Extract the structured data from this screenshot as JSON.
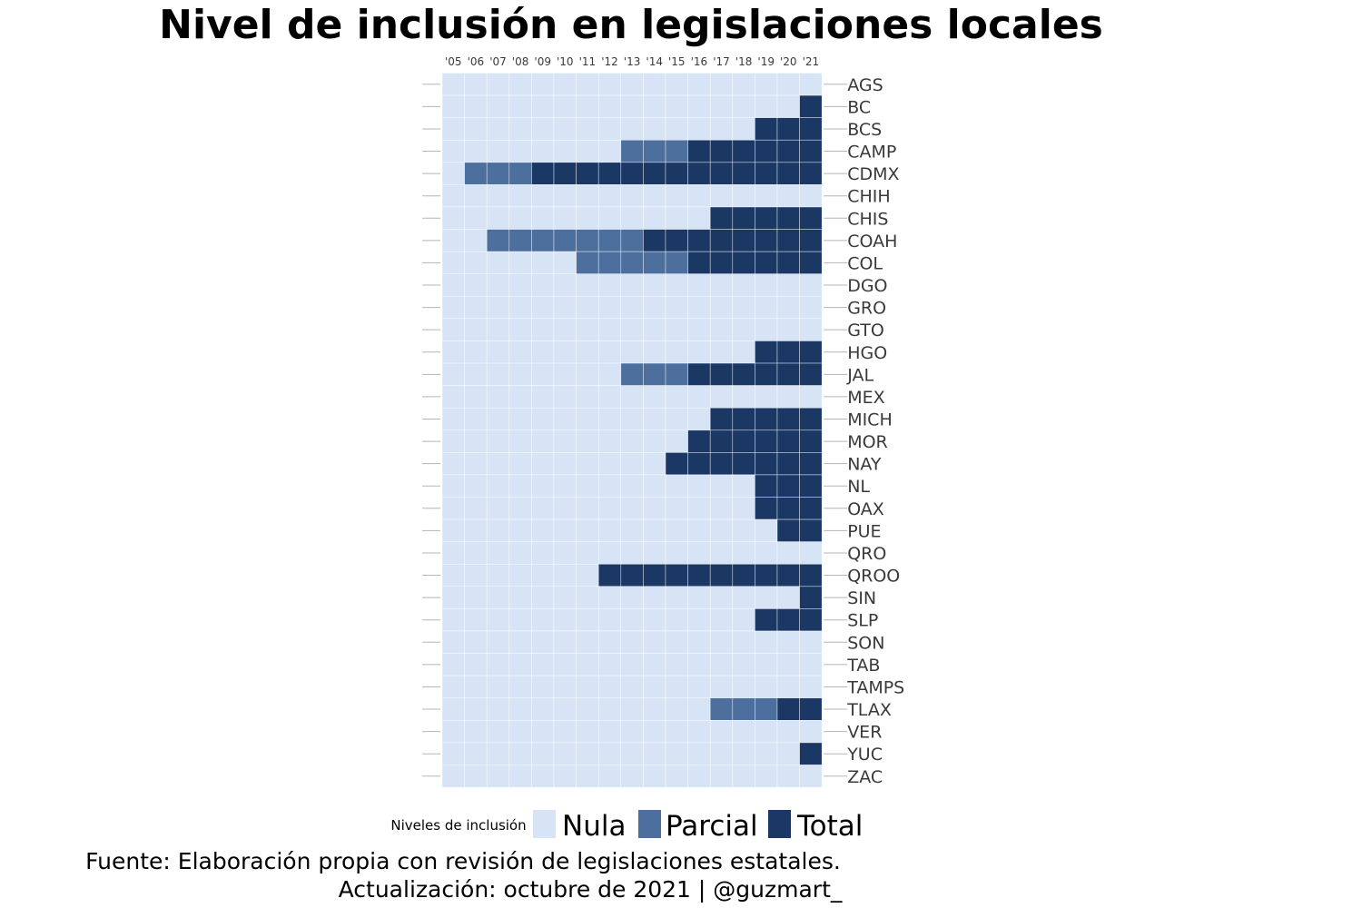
{
  "chart_data": {
    "type": "heatmap",
    "title": "Nivel de inclusión en legislaciones locales",
    "x_categories": [
      "'05",
      "'06",
      "'07",
      "'08",
      "'09",
      "'10",
      "'11",
      "'12",
      "'13",
      "'14",
      "'15",
      "'16",
      "'17",
      "'18",
      "'19",
      "'20",
      "'21"
    ],
    "y_categories": [
      "AGS",
      "BC",
      "BCS",
      "CAMP",
      "CDMX",
      "CHIH",
      "CHIS",
      "COAH",
      "COL",
      "DGO",
      "GRO",
      "GTO",
      "HGO",
      "JAL",
      "MEX",
      "MICH",
      "MOR",
      "NAY",
      "NL",
      "OAX",
      "PUE",
      "QRO",
      "QROO",
      "SIN",
      "SLP",
      "SON",
      "TAB",
      "TAMPS",
      "TLAX",
      "VER",
      "YUC",
      "ZAC"
    ],
    "levels": [
      "Nula",
      "Parcial",
      "Total"
    ],
    "level_colors": [
      "#d6e4f5",
      "#4c6f9e",
      "#1b3864"
    ],
    "values": [
      [
        0,
        0,
        0,
        0,
        0,
        0,
        0,
        0,
        0,
        0,
        0,
        0,
        0,
        0,
        0,
        0,
        0
      ],
      [
        0,
        0,
        0,
        0,
        0,
        0,
        0,
        0,
        0,
        0,
        0,
        0,
        0,
        0,
        0,
        0,
        2
      ],
      [
        0,
        0,
        0,
        0,
        0,
        0,
        0,
        0,
        0,
        0,
        0,
        0,
        0,
        0,
        2,
        2,
        2
      ],
      [
        0,
        0,
        0,
        0,
        0,
        0,
        0,
        0,
        1,
        1,
        1,
        2,
        2,
        2,
        2,
        2,
        2
      ],
      [
        0,
        1,
        1,
        1,
        2,
        2,
        2,
        2,
        2,
        2,
        2,
        2,
        2,
        2,
        2,
        2,
        2
      ],
      [
        0,
        0,
        0,
        0,
        0,
        0,
        0,
        0,
        0,
        0,
        0,
        0,
        0,
        0,
        0,
        0,
        0
      ],
      [
        0,
        0,
        0,
        0,
        0,
        0,
        0,
        0,
        0,
        0,
        0,
        0,
        2,
        2,
        2,
        2,
        2
      ],
      [
        0,
        0,
        1,
        1,
        1,
        1,
        1,
        1,
        1,
        2,
        2,
        2,
        2,
        2,
        2,
        2,
        2
      ],
      [
        0,
        0,
        0,
        0,
        0,
        0,
        1,
        1,
        1,
        1,
        1,
        2,
        2,
        2,
        2,
        2,
        2
      ],
      [
        0,
        0,
        0,
        0,
        0,
        0,
        0,
        0,
        0,
        0,
        0,
        0,
        0,
        0,
        0,
        0,
        0
      ],
      [
        0,
        0,
        0,
        0,
        0,
        0,
        0,
        0,
        0,
        0,
        0,
        0,
        0,
        0,
        0,
        0,
        0
      ],
      [
        0,
        0,
        0,
        0,
        0,
        0,
        0,
        0,
        0,
        0,
        0,
        0,
        0,
        0,
        0,
        0,
        0
      ],
      [
        0,
        0,
        0,
        0,
        0,
        0,
        0,
        0,
        0,
        0,
        0,
        0,
        0,
        0,
        2,
        2,
        2
      ],
      [
        0,
        0,
        0,
        0,
        0,
        0,
        0,
        0,
        1,
        1,
        1,
        2,
        2,
        2,
        2,
        2,
        2
      ],
      [
        0,
        0,
        0,
        0,
        0,
        0,
        0,
        0,
        0,
        0,
        0,
        0,
        0,
        0,
        0,
        0,
        0
      ],
      [
        0,
        0,
        0,
        0,
        0,
        0,
        0,
        0,
        0,
        0,
        0,
        0,
        2,
        2,
        2,
        2,
        2
      ],
      [
        0,
        0,
        0,
        0,
        0,
        0,
        0,
        0,
        0,
        0,
        0,
        2,
        2,
        2,
        2,
        2,
        2
      ],
      [
        0,
        0,
        0,
        0,
        0,
        0,
        0,
        0,
        0,
        0,
        2,
        2,
        2,
        2,
        2,
        2,
        2
      ],
      [
        0,
        0,
        0,
        0,
        0,
        0,
        0,
        0,
        0,
        0,
        0,
        0,
        0,
        0,
        2,
        2,
        2
      ],
      [
        0,
        0,
        0,
        0,
        0,
        0,
        0,
        0,
        0,
        0,
        0,
        0,
        0,
        0,
        2,
        2,
        2
      ],
      [
        0,
        0,
        0,
        0,
        0,
        0,
        0,
        0,
        0,
        0,
        0,
        0,
        0,
        0,
        0,
        2,
        2
      ],
      [
        0,
        0,
        0,
        0,
        0,
        0,
        0,
        0,
        0,
        0,
        0,
        0,
        0,
        0,
        0,
        0,
        0
      ],
      [
        0,
        0,
        0,
        0,
        0,
        0,
        0,
        2,
        2,
        2,
        2,
        2,
        2,
        2,
        2,
        2,
        2
      ],
      [
        0,
        0,
        0,
        0,
        0,
        0,
        0,
        0,
        0,
        0,
        0,
        0,
        0,
        0,
        0,
        0,
        2
      ],
      [
        0,
        0,
        0,
        0,
        0,
        0,
        0,
        0,
        0,
        0,
        0,
        0,
        0,
        0,
        2,
        2,
        2
      ],
      [
        0,
        0,
        0,
        0,
        0,
        0,
        0,
        0,
        0,
        0,
        0,
        0,
        0,
        0,
        0,
        0,
        0
      ],
      [
        0,
        0,
        0,
        0,
        0,
        0,
        0,
        0,
        0,
        0,
        0,
        0,
        0,
        0,
        0,
        0,
        0
      ],
      [
        0,
        0,
        0,
        0,
        0,
        0,
        0,
        0,
        0,
        0,
        0,
        0,
        0,
        0,
        0,
        0,
        0
      ],
      [
        0,
        0,
        0,
        0,
        0,
        0,
        0,
        0,
        0,
        0,
        0,
        0,
        1,
        1,
        1,
        2,
        2
      ],
      [
        0,
        0,
        0,
        0,
        0,
        0,
        0,
        0,
        0,
        0,
        0,
        0,
        0,
        0,
        0,
        0,
        0
      ],
      [
        0,
        0,
        0,
        0,
        0,
        0,
        0,
        0,
        0,
        0,
        0,
        0,
        0,
        0,
        0,
        0,
        2
      ],
      [
        0,
        0,
        0,
        0,
        0,
        0,
        0,
        0,
        0,
        0,
        0,
        0,
        0,
        0,
        0,
        0,
        0
      ]
    ],
    "legend_title": "Niveles de inclusión",
    "legend_position": "bottom",
    "x_axis_position": "top",
    "y_axis_position": "right",
    "grid": true,
    "grid_color": "#ffffff"
  },
  "caption": {
    "line1": "Fuente: Elaboración propia con revisión de legislaciones estatales.",
    "line2": "Actualización: octubre de 2021 | @guzmart_"
  }
}
